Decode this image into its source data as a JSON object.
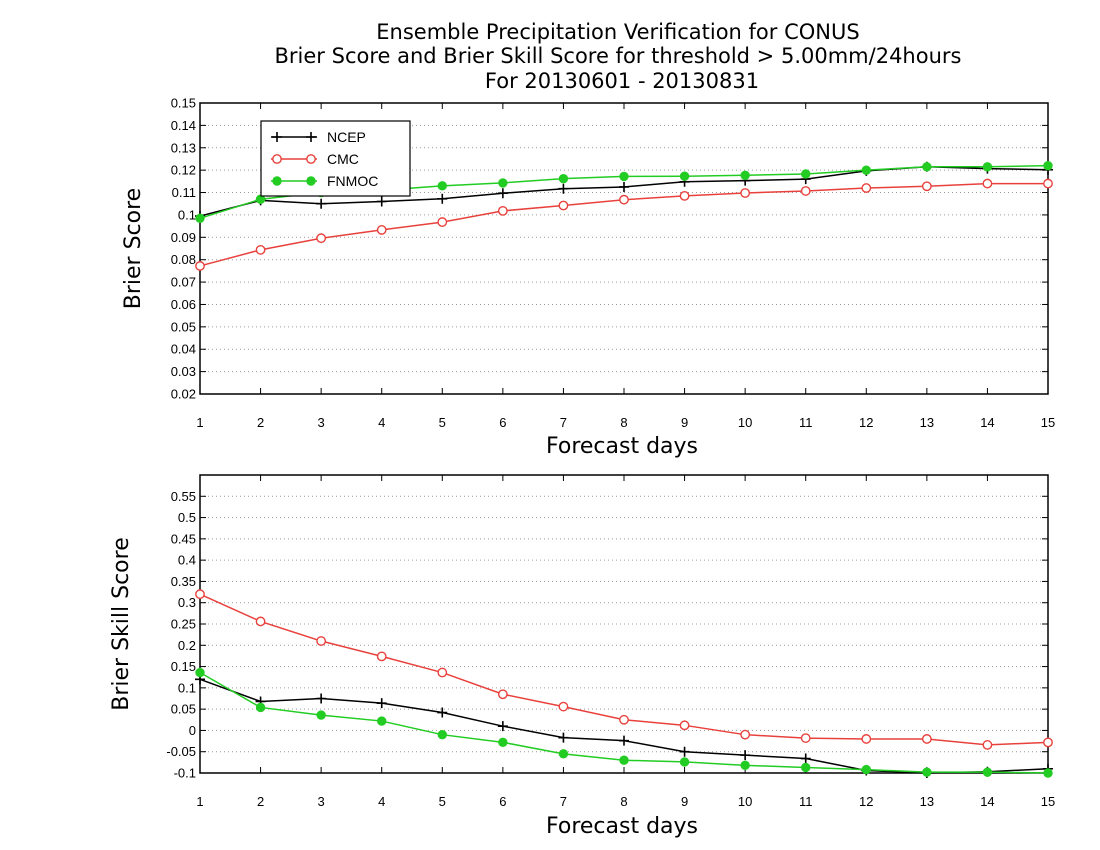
{
  "title": {
    "line1": "Ensemble Precipitation Verification for CONUS",
    "line2": "Brier Score and Brier Skill Score for threshold > 5.00mm/24hours",
    "line3": "For 20130601 - 20130831"
  },
  "colors": {
    "NCEP": "#000000",
    "CMC": "#e8413c",
    "FNMOC": "#22cc22"
  },
  "chart_data": [
    {
      "type": "line",
      "xlabel": "Forecast days",
      "ylabel": "Brier Score",
      "x": [
        1,
        2,
        3,
        4,
        5,
        6,
        7,
        8,
        9,
        10,
        11,
        12,
        13,
        14,
        15
      ],
      "xlim": [
        1,
        15
      ],
      "ylim": [
        0.02,
        0.15
      ],
      "yticks": [
        0.02,
        0.03,
        0.04,
        0.05,
        0.06,
        0.07,
        0.08,
        0.09,
        0.1,
        0.11,
        0.12,
        0.13,
        0.14,
        0.15
      ],
      "ytick_labels": [
        "0.02",
        "0.03",
        "0.04",
        "0.05",
        "0.06",
        "0.07",
        "0.08",
        "0.09",
        "0.1",
        "0.11",
        "0.12",
        "0.13",
        "0.14",
        "0.15"
      ],
      "grid": true,
      "legend": "top-left",
      "series": [
        {
          "name": "NCEP",
          "marker": "plus",
          "values": [
            0.0995,
            0.1065,
            0.105,
            0.106,
            0.1072,
            0.1097,
            0.1117,
            0.1125,
            0.1148,
            0.1153,
            0.116,
            0.1197,
            0.1215,
            0.1207,
            0.1202
          ]
        },
        {
          "name": "CMC",
          "marker": "open-circle",
          "values": [
            0.0772,
            0.0844,
            0.0896,
            0.0933,
            0.0968,
            0.1018,
            0.1042,
            0.1068,
            0.1085,
            0.1098,
            0.1107,
            0.112,
            0.1128,
            0.114,
            0.114
          ]
        },
        {
          "name": "FNMOC",
          "marker": "filled-circle",
          "values": [
            0.0985,
            0.107,
            0.11,
            0.111,
            0.113,
            0.1143,
            0.1162,
            0.1172,
            0.1173,
            0.1177,
            0.1183,
            0.12,
            0.1215,
            0.1215,
            0.122
          ]
        }
      ]
    },
    {
      "type": "line",
      "xlabel": "Forecast days",
      "ylabel": "Brier Skill Score",
      "x": [
        1,
        2,
        3,
        4,
        5,
        6,
        7,
        8,
        9,
        10,
        11,
        12,
        13,
        14,
        15
      ],
      "xlim": [
        1,
        15
      ],
      "ylim": [
        -0.1,
        0.6
      ],
      "yticks": [
        -0.1,
        -0.05,
        0,
        0.05,
        0.1,
        0.15,
        0.2,
        0.25,
        0.3,
        0.35,
        0.4,
        0.45,
        0.5,
        0.55
      ],
      "ytick_labels": [
        "-0.1",
        "-0.05",
        "0",
        "0.05",
        "0.1",
        "0.15",
        "0.2",
        "0.25",
        "0.3",
        "0.35",
        "0.4",
        "0.45",
        "0.5",
        "0.55"
      ],
      "grid": true,
      "series": [
        {
          "name": "NCEP",
          "marker": "plus",
          "values": [
            0.12,
            0.068,
            0.075,
            0.064,
            0.042,
            0.01,
            -0.017,
            -0.024,
            -0.05,
            -0.058,
            -0.066,
            -0.094,
            -0.1,
            -0.097,
            -0.09
          ]
        },
        {
          "name": "CMC",
          "marker": "open-circle",
          "values": [
            0.32,
            0.256,
            0.21,
            0.174,
            0.136,
            0.085,
            0.056,
            0.025,
            0.012,
            -0.01,
            -0.018,
            -0.02,
            -0.02,
            -0.034,
            -0.028
          ]
        },
        {
          "name": "FNMOC",
          "marker": "filled-circle",
          "values": [
            0.136,
            0.054,
            0.036,
            0.022,
            -0.01,
            -0.028,
            -0.055,
            -0.07,
            -0.074,
            -0.082,
            -0.087,
            -0.092,
            -0.098,
            -0.098,
            -0.1
          ]
        }
      ]
    }
  ]
}
